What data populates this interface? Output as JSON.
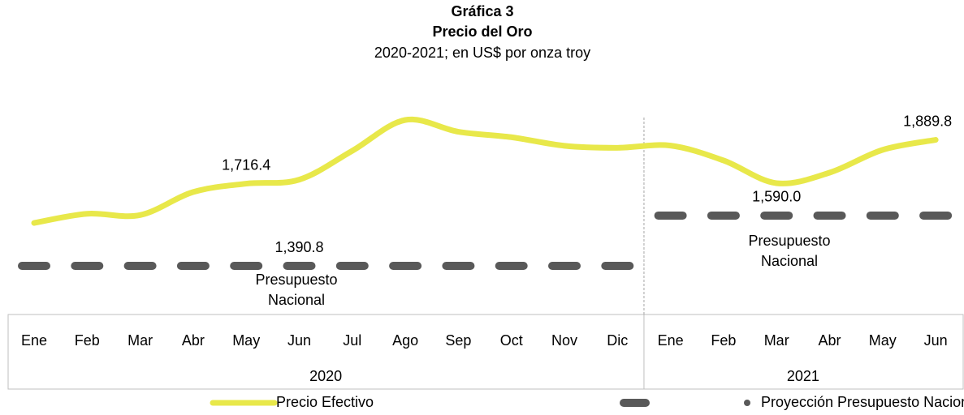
{
  "chart_data": {
    "type": "line",
    "title": "Gráfica 3",
    "subtitle": "Precio del Oro",
    "description": "2020-2021; en US$ por onza troy",
    "category_groups": [
      {
        "label": "2020",
        "categories": [
          "Ene",
          "Feb",
          "Mar",
          "Abr",
          "May",
          "Jun",
          "Jul",
          "Ago",
          "Sep",
          "Oct",
          "Nov",
          "Dic"
        ]
      },
      {
        "label": "2021",
        "categories": [
          "Ene",
          "Feb",
          "Mar",
          "Abr",
          "May",
          "Jun"
        ]
      }
    ],
    "series": [
      {
        "name": "Precio Efectivo",
        "color": "#e8e84a",
        "style": "smooth",
        "values": [
          1560.7,
          1597.1,
          1591.9,
          1683.2,
          1716.4,
          1732.2,
          1846.5,
          1968.6,
          1921.9,
          1900.3,
          1866.3,
          1858.4,
          1867.0,
          1808.2,
          1718.2,
          1760.0,
          1850.3,
          1889.8
        ],
        "value_labels": [
          null,
          null,
          null,
          null,
          "1,716.4",
          null,
          null,
          null,
          null,
          null,
          null,
          null,
          null,
          null,
          null,
          null,
          null,
          "1,889.8"
        ]
      },
      {
        "name": "Proyección Presupuesto Nacional",
        "color": "#595959",
        "style": "dash",
        "values": [
          1390.8,
          1390.8,
          1390.8,
          1390.8,
          1390.8,
          1390.8,
          1390.8,
          1390.8,
          1390.8,
          1390.8,
          1390.8,
          1390.8,
          1590.0,
          1590.0,
          1590.0,
          1590.0,
          1590.0,
          1590.0
        ],
        "value_labels": [
          null,
          null,
          null,
          null,
          null,
          "1,390.8",
          null,
          null,
          null,
          null,
          null,
          null,
          null,
          null,
          "1,590.0",
          null,
          null,
          null
        ]
      }
    ],
    "annotations": [
      [
        "Presupuesto",
        "Nacional"
      ],
      [
        "Presupuesto",
        "Nacional"
      ]
    ]
  }
}
